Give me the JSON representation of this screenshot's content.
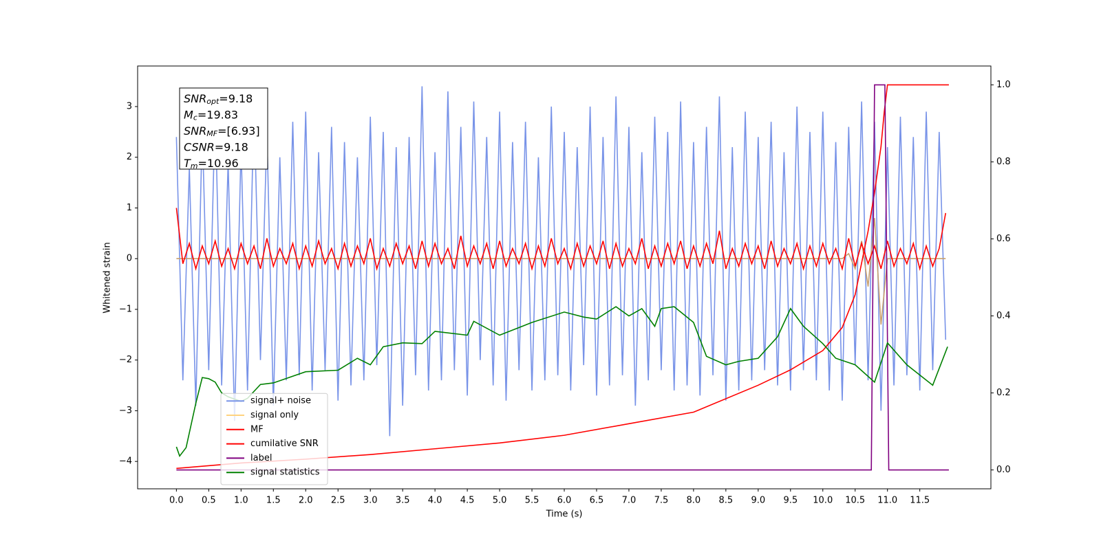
{
  "chart_data": {
    "type": "line",
    "xlabel": "Time (s)",
    "ylabel": "Whitened strain",
    "xlim": [
      -0.6,
      12.6
    ],
    "ylim": [
      -4.54,
      3.8
    ],
    "y2lim": [
      -0.049,
      1.049
    ],
    "xticks": [
      {
        "value": 0,
        "label": "0.0"
      },
      0.5,
      {
        "value": 1,
        "label": "1.0"
      },
      1.5,
      {
        "value": 2,
        "label": "2.0"
      },
      2.5,
      {
        "value": 3,
        "label": "3.0"
      },
      3.5,
      {
        "value": 4,
        "label": "4.0"
      },
      4.5,
      {
        "value": 5,
        "label": "5.0"
      },
      5.5,
      {
        "value": 6,
        "label": "6.0"
      },
      6.5,
      {
        "value": 7,
        "label": "7.0"
      },
      7.5,
      {
        "value": 8,
        "label": "8.0"
      },
      8.5,
      {
        "value": 9,
        "label": "9.0"
      },
      9.5,
      {
        "value": 10,
        "label": "10.0"
      },
      10.5,
      {
        "value": 11,
        "label": "11.0"
      },
      11.5
    ],
    "yticks": [
      {
        "value": -4,
        "label": "−4"
      },
      {
        "value": -3,
        "label": "−3"
      },
      {
        "value": -2,
        "label": "−2"
      },
      {
        "value": -1,
        "label": "−1"
      },
      0,
      1,
      2,
      3
    ],
    "y2ticks": [
      {
        "value": 0,
        "label": "0.0"
      },
      0.2,
      0.4,
      0.6,
      0.8,
      {
        "value": 1,
        "label": "1.0"
      }
    ],
    "grid": false,
    "legend_loc": "lower left",
    "annotation": [
      {
        "text": "SNR",
        "sub": "opt",
        "rest": "=9.18"
      },
      {
        "text": "M",
        "sub": "c",
        "rest": "=19.83"
      },
      {
        "text": "SNR",
        "sub": "MF",
        "rest": "=[6.93]"
      },
      {
        "text": "CSNR",
        "rest": "=9.18"
      },
      {
        "text": "T",
        "sub": "m",
        "rest": "=10.96"
      }
    ],
    "x": [
      0,
      0.1,
      0.2,
      0.3,
      0.4,
      0.5,
      0.6,
      0.7,
      0.8,
      0.9,
      1,
      1.1,
      1.2,
      1.3,
      1.4,
      1.5,
      1.6,
      1.7,
      1.8,
      1.9,
      2,
      2.1,
      2.2,
      2.3,
      2.4,
      2.5,
      2.6,
      2.7,
      2.8,
      2.9,
      3,
      3.1,
      3.2,
      3.3,
      3.4,
      3.5,
      3.6,
      3.7,
      3.8,
      3.9,
      4,
      4.1,
      4.2,
      4.3,
      4.4,
      4.5,
      4.6,
      4.7,
      4.8,
      4.9,
      5,
      5.1,
      5.2,
      5.3,
      5.4,
      5.5,
      5.6,
      5.7,
      5.8,
      5.9,
      6,
      6.1,
      6.2,
      6.3,
      6.4,
      6.5,
      6.6,
      6.7,
      6.8,
      6.9,
      7,
      7.1,
      7.2,
      7.3,
      7.4,
      7.5,
      7.6,
      7.7,
      7.8,
      7.9,
      8,
      8.1,
      8.2,
      8.3,
      8.4,
      8.5,
      8.6,
      8.7,
      8.8,
      8.9,
      9,
      9.1,
      9.2,
      9.3,
      9.4,
      9.5,
      9.6,
      9.7,
      9.8,
      9.9,
      10,
      10.1,
      10.2,
      10.3,
      10.4,
      10.5,
      10.6,
      10.7,
      10.8,
      10.9,
      11,
      11.1,
      11.2,
      11.3,
      11.4,
      11.5,
      11.6,
      11.7,
      11.8,
      11.9
    ],
    "series": [
      {
        "name": "signal+ noise",
        "color": "#7893e8",
        "values": [
          2.4,
          -2.4,
          1.8,
          -2.9,
          2.6,
          -2.2,
          3.0,
          -2.5,
          1.9,
          -3.2,
          2.2,
          -2.6,
          3.1,
          -2.0,
          2.5,
          -2.9,
          2.0,
          -2.4,
          2.7,
          -2.3,
          2.9,
          -2.6,
          2.1,
          -2.2,
          2.6,
          -2.8,
          2.3,
          -2.5,
          2.0,
          -2.4,
          2.8,
          -2.1,
          2.5,
          -3.5,
          2.2,
          -2.9,
          2.4,
          -2.3,
          3.4,
          -2.6,
          2.1,
          -2.4,
          3.3,
          -2.2,
          2.6,
          -2.7,
          3.1,
          -2.0,
          2.4,
          -2.5,
          2.9,
          -2.8,
          2.3,
          -2.2,
          2.7,
          -2.6,
          2.0,
          -2.4,
          3.0,
          -2.3,
          2.5,
          -2.6,
          2.2,
          -2.1,
          3.0,
          -2.7,
          2.4,
          -2.5,
          3.2,
          -2.3,
          2.6,
          -2.9,
          2.1,
          -2.4,
          2.8,
          -2.2,
          2.5,
          -2.6,
          3.1,
          -2.5,
          2.3,
          -2.7,
          2.6,
          -2.3,
          3.2,
          -2.8,
          2.2,
          -2.6,
          2.9,
          -2.4,
          2.4,
          -2.2,
          2.7,
          -2.5,
          2.1,
          -2.6,
          3.0,
          -2.2,
          2.5,
          -2.4,
          2.9,
          -2.6,
          2.3,
          -2.8,
          2.6,
          -2.1,
          3.1,
          -2.4,
          2.7,
          -3.0,
          2.2,
          -2.5,
          2.8,
          -2.3,
          2.4,
          -2.6,
          2.9,
          -2.2,
          2.5,
          -1.6
        ]
      },
      {
        "name": "signal only",
        "color": "#c8a06e",
        "values": [
          0,
          0,
          0,
          0,
          0,
          0,
          0,
          0,
          0,
          0,
          0,
          0,
          0,
          0,
          0,
          0,
          0,
          0,
          0,
          0,
          0,
          0,
          0,
          0,
          0,
          0,
          0,
          0,
          0,
          0,
          0,
          0,
          0,
          0,
          0,
          0,
          0,
          0,
          0,
          0,
          0,
          0,
          0,
          0,
          0,
          0,
          0,
          0,
          0,
          0,
          0,
          0,
          0,
          0,
          0,
          0,
          0,
          0,
          0,
          0,
          0,
          0,
          0,
          0,
          0,
          0,
          0,
          0,
          0,
          0,
          0,
          0,
          0,
          0,
          0,
          0,
          0,
          0,
          0,
          0,
          0,
          0,
          0,
          0,
          0,
          0,
          0,
          0,
          0,
          0,
          0,
          0,
          0,
          0,
          0,
          0,
          0,
          0,
          0,
          0,
          0,
          0,
          0,
          0,
          0.1,
          -0.2,
          0.35,
          -0.55,
          0.8,
          -1.3,
          0,
          0,
          0,
          0,
          0,
          0,
          0,
          0,
          0,
          0
        ]
      },
      {
        "name": "MF",
        "color": "#ff0000",
        "values": [
          1.0,
          -0.1,
          0.3,
          -0.2,
          0.25,
          -0.1,
          0.35,
          -0.15,
          0.2,
          -0.2,
          0.3,
          -0.1,
          0.25,
          -0.2,
          0.4,
          -0.15,
          0.2,
          -0.1,
          0.3,
          -0.2,
          0.25,
          -0.15,
          0.35,
          -0.1,
          0.2,
          -0.2,
          0.3,
          -0.15,
          0.25,
          -0.1,
          0.4,
          -0.2,
          0.2,
          -0.15,
          0.3,
          -0.1,
          0.25,
          -0.2,
          0.35,
          -0.15,
          0.3,
          -0.1,
          0.2,
          -0.2,
          0.45,
          -0.15,
          0.25,
          -0.1,
          0.3,
          -0.2,
          0.35,
          -0.15,
          0.2,
          -0.1,
          0.3,
          -0.2,
          0.25,
          -0.15,
          0.4,
          -0.1,
          0.2,
          -0.2,
          0.3,
          -0.15,
          0.25,
          -0.1,
          0.35,
          -0.2,
          0.3,
          -0.15,
          0.2,
          -0.1,
          0.4,
          -0.2,
          0.25,
          -0.15,
          0.3,
          -0.1,
          0.35,
          -0.2,
          0.25,
          -0.15,
          0.3,
          -0.1,
          0.55,
          -0.2,
          0.2,
          -0.15,
          0.3,
          -0.1,
          0.25,
          -0.2,
          0.35,
          -0.15,
          0.2,
          -0.1,
          0.3,
          -0.2,
          0.25,
          -0.15,
          0.3,
          -0.1,
          0.2,
          -0.2,
          0.4,
          -0.15,
          0.3,
          -0.1,
          0.25,
          -0.2,
          0.35,
          -0.15,
          0.2,
          -0.1,
          0.3,
          -0.2,
          0.25,
          -0.15,
          0.2,
          0.9
        ]
      },
      {
        "name": "cumilative SNR",
        "color": "#ff0000",
        "axis": "y2",
        "x": [
          0,
          1,
          2,
          3,
          4,
          5,
          6,
          7,
          8,
          9,
          9.5,
          10,
          10.3,
          10.5,
          10.7,
          10.8,
          10.9,
          10.95,
          11,
          11.95
        ],
        "values": [
          0.004,
          0.018,
          0.028,
          0.04,
          0.055,
          0.07,
          0.09,
          0.12,
          0.15,
          0.22,
          0.26,
          0.31,
          0.37,
          0.455,
          0.62,
          0.72,
          0.84,
          0.93,
          1.0,
          1.0
        ]
      },
      {
        "name": "label",
        "color": "#800080",
        "axis": "y2",
        "x": [
          0,
          10.75,
          10.8,
          10.96,
          11.02,
          11.95
        ],
        "values": [
          0,
          0,
          1,
          1,
          0,
          0
        ]
      },
      {
        "name": "signal statistics",
        "color": "#008000",
        "axis": "y2",
        "x": [
          0,
          0.05,
          0.15,
          0.3,
          0.4,
          0.5,
          0.6,
          0.7,
          0.8,
          1.0,
          1.1,
          1.3,
          1.5,
          2.0,
          2.5,
          2.8,
          3.0,
          3.2,
          3.5,
          3.8,
          4.0,
          4.5,
          4.6,
          5.0,
          5.5,
          6.0,
          6.3,
          6.5,
          6.8,
          7.0,
          7.2,
          7.4,
          7.5,
          7.7,
          8.0,
          8.2,
          8.5,
          8.7,
          9.0,
          9.3,
          9.5,
          9.7,
          10.0,
          10.2,
          10.5,
          10.8,
          11.0,
          11.3,
          11.7,
          11.93
        ],
        "values": [
          0.06,
          0.036,
          0.058,
          0.173,
          0.24,
          0.237,
          0.228,
          0.2,
          0.19,
          0.178,
          0.186,
          0.222,
          0.226,
          0.255,
          0.259,
          0.29,
          0.273,
          0.32,
          0.33,
          0.328,
          0.36,
          0.35,
          0.386,
          0.35,
          0.383,
          0.41,
          0.397,
          0.392,
          0.424,
          0.4,
          0.419,
          0.373,
          0.419,
          0.424,
          0.383,
          0.295,
          0.273,
          0.282,
          0.29,
          0.346,
          0.419,
          0.373,
          0.328,
          0.29,
          0.273,
          0.228,
          0.33,
          0.273,
          0.22,
          0.32
        ]
      }
    ]
  }
}
